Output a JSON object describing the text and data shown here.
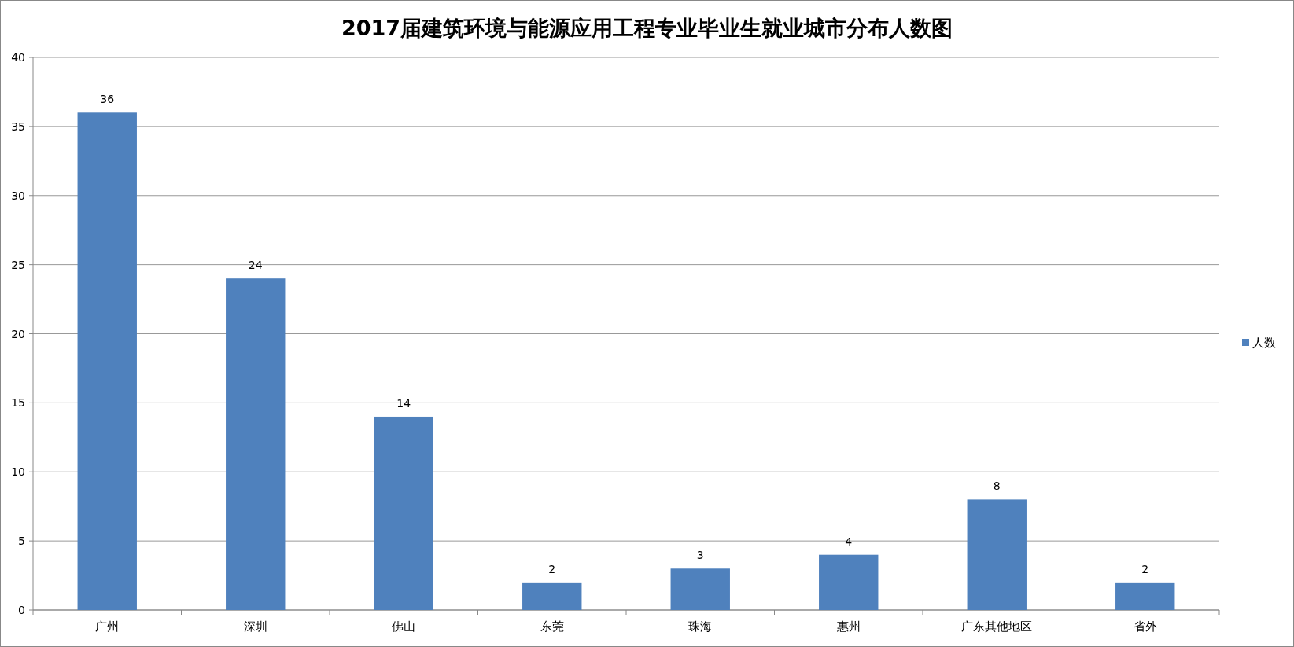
{
  "chart_data": {
    "type": "bar",
    "title": "2017届建筑环境与能源应用工程专业毕业生就业城市分布人数图",
    "categories": [
      "广州",
      "深圳",
      "佛山",
      "东莞",
      "珠海",
      "惠州",
      "广东其他地区",
      "省外"
    ],
    "series": [
      {
        "name": "人数",
        "color": "#4f81bd",
        "values": [
          36,
          24,
          14,
          2,
          3,
          4,
          8,
          2
        ]
      }
    ],
    "ylim": [
      0,
      40
    ],
    "yticks": [
      0,
      5,
      10,
      15,
      20,
      25,
      30,
      35,
      40
    ],
    "grid": "y",
    "legend": "right",
    "data_labels": true
  }
}
